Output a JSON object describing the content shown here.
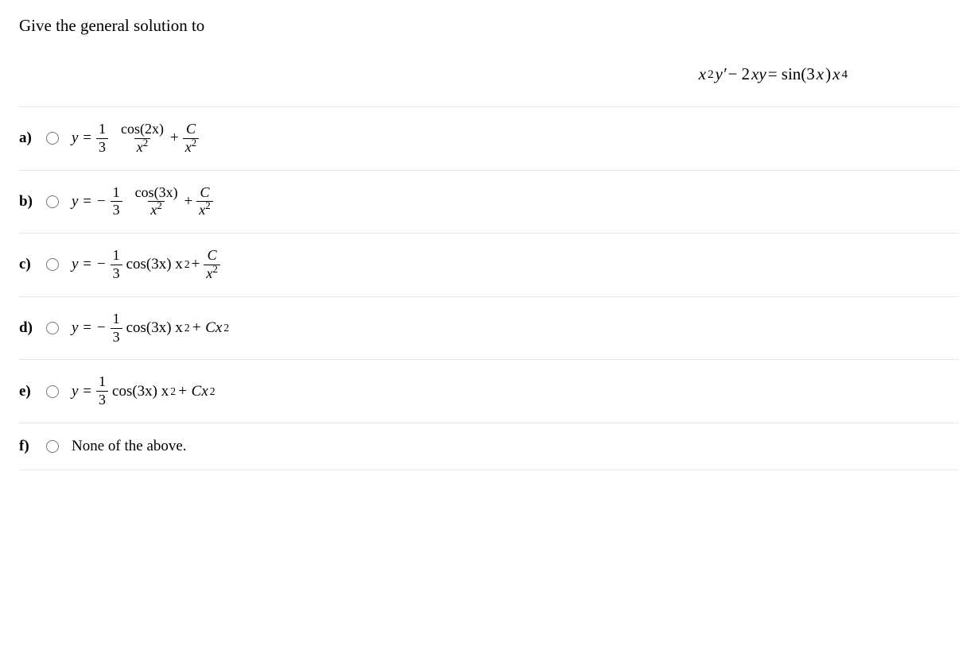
{
  "question": {
    "prompt": "Give the general solution to"
  },
  "equation": {
    "lhs_x_sup": "2",
    "y_prime": "y′",
    "minus": " − 2",
    "xy": "xy",
    "eq": " = sin(3",
    "x_in": "x",
    "close": ") ",
    "x_end": "x",
    "x_end_sup": "4"
  },
  "options": {
    "a": {
      "letter": "a)",
      "prefix": "y = ",
      "frac1_num": "1",
      "frac1_den": "3",
      "frac2_num": "cos(2x)",
      "frac2_den_base": "x",
      "frac2_den_sup": "2",
      "plus": " + ",
      "frac3_num": "C",
      "frac3_den_base": "x",
      "frac3_den_sup": "2"
    },
    "b": {
      "letter": "b)",
      "prefix": "y = −",
      "frac1_num": "1",
      "frac1_den": "3",
      "frac2_num": "cos(3x)",
      "frac2_den_base": "x",
      "frac2_den_sup": "2",
      "plus": " + ",
      "frac3_num": "C",
      "frac3_den_base": "x",
      "frac3_den_sup": "2"
    },
    "c": {
      "letter": "c)",
      "prefix": "y = −",
      "frac1_num": "1",
      "frac1_den": "3",
      "mid": " cos(3x) x",
      "mid_sup": "2",
      "plus": " + ",
      "frac3_num": "C",
      "frac3_den_base": "x",
      "frac3_den_sup": "2"
    },
    "d": {
      "letter": "d)",
      "prefix": "y = −",
      "frac1_num": "1",
      "frac1_den": "3",
      "mid": " cos(3x) x",
      "mid_sup": "2",
      "plus": " + Cx",
      "plus_sup": "2"
    },
    "e": {
      "letter": "e)",
      "prefix": "y = ",
      "frac1_num": "1",
      "frac1_den": "3",
      "mid": " cos(3x) x",
      "mid_sup": "2",
      "plus": " + Cx",
      "plus_sup": "2"
    },
    "f": {
      "letter": "f)",
      "text": "None of the above."
    }
  },
  "colors": {
    "text": "#000000",
    "border": "#e8e8e8",
    "background": "#ffffff"
  },
  "fonts": {
    "family": "Times New Roman",
    "prompt_size_pt": 16,
    "option_size_pt": 14
  }
}
